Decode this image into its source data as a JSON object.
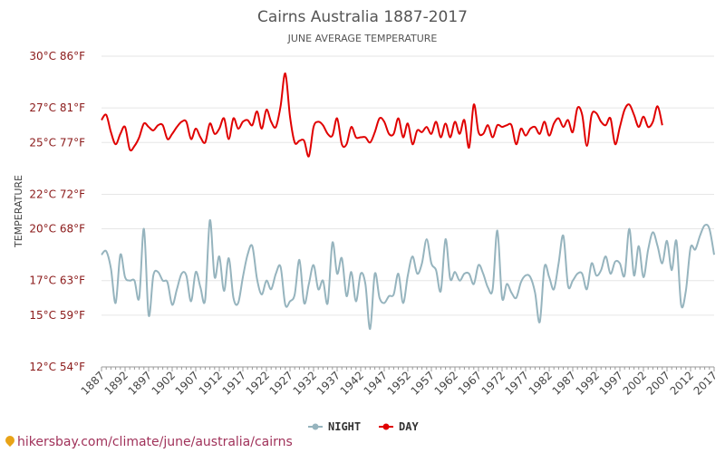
{
  "chart_data": {
    "type": "line",
    "title": "Cairns Australia 1887-2017",
    "subtitle": "JUNE AVERAGE TEMPERATURE",
    "ylabel": "TEMPERATURE",
    "ylim": [
      12,
      30
    ],
    "yticks": [
      {
        "value": 12,
        "label": "12°C 54°F"
      },
      {
        "value": 15,
        "label": "15°C 59°F"
      },
      {
        "value": 17,
        "label": "17°C 63°F"
      },
      {
        "value": 20,
        "label": "20°C 68°F"
      },
      {
        "value": 22,
        "label": "22°C 72°F"
      },
      {
        "value": 25,
        "label": "25°C 77°F"
      },
      {
        "value": 27,
        "label": "27°C 81°F"
      },
      {
        "value": 30,
        "label": "30°C 86°F"
      }
    ],
    "xticks": [
      "1887",
      "1892",
      "1897",
      "1902",
      "1907",
      "1912",
      "1917",
      "1922",
      "1927",
      "1932",
      "1937",
      "1942",
      "1947",
      "1952",
      "1957",
      "1962",
      "1967",
      "1972",
      "1977",
      "1982",
      "1987",
      "1992",
      "1997",
      "2002",
      "2007",
      "2012",
      "2017"
    ],
    "xrange": [
      1887,
      2017
    ],
    "grid": true,
    "legend_position": "bottom",
    "series": [
      {
        "name": "NIGHT",
        "color": "#96b4be",
        "x_start": 1887,
        "values": [
          18.5,
          18.7,
          17.7,
          15.7,
          18.5,
          17.2,
          17.0,
          17.0,
          16.0,
          20.0,
          15.0,
          17.3,
          17.5,
          17.0,
          16.9,
          15.6,
          16.5,
          17.4,
          17.3,
          15.8,
          17.5,
          16.6,
          15.9,
          20.5,
          17.2,
          18.4,
          16.4,
          18.3,
          16.0,
          15.7,
          17.2,
          18.5,
          19.0,
          17.1,
          16.2,
          17.0,
          16.5,
          17.4,
          17.8,
          15.6,
          15.8,
          16.2,
          18.2,
          15.7,
          16.8,
          17.9,
          16.5,
          17.0,
          15.7,
          19.2,
          17.4,
          18.3,
          16.1,
          17.5,
          15.8,
          17.4,
          16.8,
          14.2,
          17.4,
          16.0,
          15.7,
          16.1,
          16.2,
          17.4,
          15.7,
          17.3,
          18.4,
          17.4,
          18.0,
          19.4,
          18.0,
          17.6,
          16.4,
          19.4,
          17.1,
          17.5,
          17.0,
          17.4,
          17.4,
          16.8,
          17.9,
          17.4,
          16.6,
          16.5,
          19.9,
          16.0,
          16.8,
          16.3,
          16.0,
          16.9,
          17.3,
          17.2,
          16.3,
          14.6,
          17.8,
          17.2,
          16.5,
          18.0,
          19.6,
          16.7,
          17.0,
          17.4,
          17.4,
          16.5,
          18.0,
          17.3,
          17.6,
          18.4,
          17.4,
          18.1,
          18.0,
          17.3,
          20.0,
          17.3,
          19.0,
          17.2,
          18.8,
          19.8,
          19.0,
          18.0,
          19.3,
          17.6,
          19.3,
          15.6,
          16.4,
          18.9,
          18.8,
          19.6,
          20.2,
          20.0,
          18.5
        ]
      },
      {
        "name": "DAY",
        "color": "#e00000",
        "x_start": 1887,
        "values": [
          26.3,
          26.6,
          25.6,
          24.9,
          25.5,
          25.9,
          24.6,
          24.8,
          25.3,
          26.1,
          25.9,
          25.7,
          26.0,
          26.0,
          25.2,
          25.5,
          25.9,
          26.2,
          26.2,
          25.2,
          25.8,
          25.3,
          25.0,
          26.1,
          25.5,
          25.8,
          26.4,
          25.2,
          26.4,
          25.8,
          26.2,
          26.3,
          26.0,
          26.8,
          25.8,
          26.9,
          26.2,
          25.9,
          27.1,
          29.0,
          26.5,
          25.0,
          25.1,
          25.1,
          24.2,
          25.9,
          26.2,
          26.0,
          25.5,
          25.4,
          26.4,
          24.9,
          24.9,
          25.9,
          25.3,
          25.3,
          25.3,
          25.0,
          25.6,
          26.4,
          26.2,
          25.5,
          25.5,
          26.4,
          25.3,
          26.1,
          24.9,
          25.7,
          25.6,
          25.9,
          25.5,
          26.2,
          25.3,
          26.1,
          25.3,
          26.2,
          25.5,
          26.3,
          24.7,
          27.2,
          25.6,
          25.5,
          26.0,
          25.3,
          26.0,
          25.9,
          26.0,
          26.0,
          24.9,
          25.8,
          25.4,
          25.8,
          25.9,
          25.5,
          26.2,
          25.4,
          26.1,
          26.4,
          25.9,
          26.3,
          25.6,
          27.0,
          26.6,
          24.8,
          26.6,
          26.7,
          26.2,
          26.0,
          26.4,
          24.9,
          25.9,
          26.9,
          27.2,
          26.6,
          25.9,
          26.5,
          25.9,
          26.2,
          27.1,
          26.0
        ]
      }
    ]
  },
  "footer": {
    "url": "hikersbay.com/climate/june/australia/cairns",
    "icon": "map-pin-icon"
  }
}
